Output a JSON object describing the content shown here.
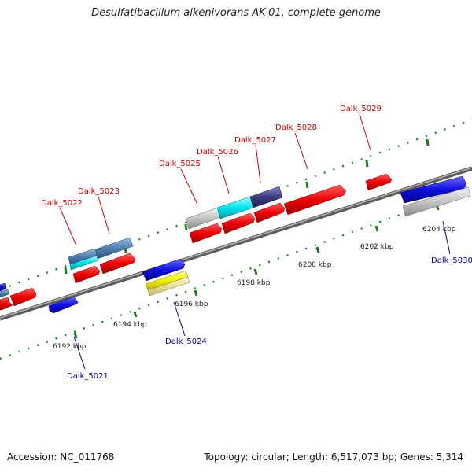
{
  "title": "Desulfatibacillum alkenivorans AK-01, complete genome",
  "footer": {
    "accession": "Accession: NC_011768",
    "summary": "Topology: circular; Length: 6,517,073 bp; Genes: 5,314"
  },
  "ticks": [
    "6192 kbp",
    "6194 kbp",
    "6196 kbp",
    "6198 kbp",
    "6200 kbp",
    "6202 kbp",
    "6204 kbp"
  ],
  "gene_labels": {
    "top": [
      "Dalk_5022",
      "Dalk_5023",
      "Dalk_5025",
      "Dalk_5026",
      "Dalk_5027",
      "Dalk_5028",
      "Dalk_5029"
    ],
    "bottom": [
      "Dalk_5021",
      "Dalk_5024",
      "Dalk_5030"
    ]
  },
  "colors": {
    "forward_label": "#cc0000",
    "reverse_label": "#00008b",
    "backbone": "#888888",
    "dots": "#1a7a1a",
    "red": "#ee0000",
    "blue": "#1010dd",
    "gray": "#bdbdbd",
    "cyan": "#00e5ee",
    "steel": "#4f7fae",
    "navy": "#3c3c80",
    "yellow": "#f0f000"
  }
}
